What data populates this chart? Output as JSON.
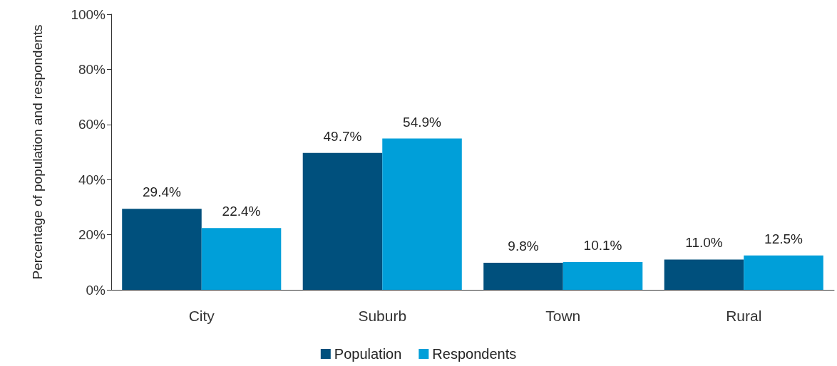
{
  "chart_data": {
    "type": "bar",
    "ylabel": "Percentage of population and respondents",
    "categories": [
      "City",
      "Suburb",
      "Town",
      "Rural"
    ],
    "series": [
      {
        "name": "Population",
        "color": "#00507d",
        "values": [
          29.4,
          49.7,
          9.8,
          11.0
        ],
        "value_labels": [
          "29.4%",
          "49.7%",
          "9.8%",
          "11.0%"
        ]
      },
      {
        "name": "Respondents",
        "color": "#009fd9",
        "values": [
          22.4,
          54.9,
          10.1,
          12.5
        ],
        "value_labels": [
          "22.4%",
          "54.9%",
          "10.1%",
          "12.5%"
        ]
      }
    ],
    "ylim": [
      0,
      100
    ],
    "yticks": [
      {
        "value": 0,
        "label": "0%"
      },
      {
        "value": 20,
        "label": "20%"
      },
      {
        "value": 40,
        "label": "40%"
      },
      {
        "value": 60,
        "label": "60%"
      },
      {
        "value": 80,
        "label": "80%"
      },
      {
        "value": 100,
        "label": "100%"
      }
    ],
    "grid": false,
    "legend": "bottom"
  }
}
